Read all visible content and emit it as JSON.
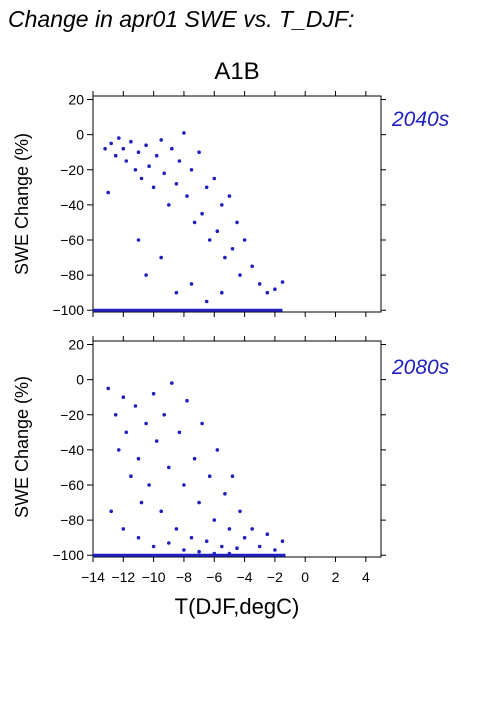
{
  "figure": {
    "title": "Change in apr01 SWE vs. T_DJF:",
    "scenario": "A1B",
    "xlabel": "T(DJF,degC)",
    "point_color": "#2020c0"
  },
  "chart_data": [
    {
      "type": "scatter",
      "panel_label": "2040s",
      "ylabel": "SWE Change (%)",
      "xlim": [
        -14,
        5
      ],
      "ylim": [
        -101,
        22
      ],
      "x_ticks": [
        -14,
        -12,
        -10,
        -8,
        -6,
        -4,
        -2,
        0,
        2,
        4
      ],
      "y_ticks": [
        20,
        0,
        -20,
        -40,
        -60,
        -80,
        -100
      ],
      "x_tick_labels": [],
      "y_tick_labels": [
        "20",
        "0",
        "−20",
        "−40",
        "−60",
        "−80",
        "−100"
      ],
      "series": [
        {
          "points_approx": [
            [
              -13.2,
              -8
            ],
            [
              -13.0,
              -33
            ],
            [
              -12.8,
              -5
            ],
            [
              -12.5,
              -12
            ],
            [
              -12.3,
              -2
            ],
            [
              -12.0,
              -8
            ],
            [
              -11.8,
              -15
            ],
            [
              -11.5,
              -4
            ],
            [
              -11.2,
              -20
            ],
            [
              -11.0,
              -10
            ],
            [
              -10.8,
              -25
            ],
            [
              -10.5,
              -6
            ],
            [
              -10.3,
              -18
            ],
            [
              -10.0,
              -30
            ],
            [
              -9.8,
              -12
            ],
            [
              -9.5,
              -3
            ],
            [
              -9.3,
              -22
            ],
            [
              -9.0,
              -40
            ],
            [
              -8.8,
              -8
            ],
            [
              -8.5,
              -28
            ],
            [
              -8.3,
              -15
            ],
            [
              -8.0,
              1
            ],
            [
              -7.8,
              -35
            ],
            [
              -7.5,
              -20
            ],
            [
              -7.3,
              -50
            ],
            [
              -7.0,
              -10
            ],
            [
              -6.8,
              -45
            ],
            [
              -6.5,
              -30
            ],
            [
              -6.3,
              -60
            ],
            [
              -6.0,
              -25
            ],
            [
              -5.8,
              -55
            ],
            [
              -5.5,
              -40
            ],
            [
              -5.3,
              -70
            ],
            [
              -5.0,
              -35
            ],
            [
              -4.8,
              -65
            ],
            [
              -4.5,
              -50
            ],
            [
              -4.3,
              -80
            ],
            [
              -4.0,
              -60
            ],
            [
              -3.5,
              -75
            ],
            [
              -3.0,
              -85
            ],
            [
              -2.5,
              -90
            ],
            [
              -2.0,
              -88
            ],
            [
              -1.5,
              -84
            ],
            [
              -11.0,
              -60
            ],
            [
              -10.5,
              -80
            ],
            [
              -9.5,
              -70
            ],
            [
              -8.5,
              -90
            ],
            [
              -7.5,
              -85
            ],
            [
              -6.5,
              -95
            ],
            [
              -5.5,
              -90
            ]
          ],
          "baseline_value": -100,
          "baseline_x_range": [
            -14,
            -1.5
          ]
        }
      ]
    },
    {
      "type": "scatter",
      "panel_label": "2080s",
      "ylabel": "SWE Change (%)",
      "xlim": [
        -14,
        5
      ],
      "ylim": [
        -101,
        22
      ],
      "x_ticks": [
        -14,
        -12,
        -10,
        -8,
        -6,
        -4,
        -2,
        0,
        2,
        4
      ],
      "y_ticks": [
        20,
        0,
        -20,
        -40,
        -60,
        -80,
        -100
      ],
      "x_tick_labels": [
        "−14",
        "−12",
        "−10",
        "−8",
        "−6",
        "−4",
        "−2",
        "0",
        "2",
        "4"
      ],
      "y_tick_labels": [
        "20",
        "0",
        "−20",
        "−40",
        "−60",
        "−80",
        "−100"
      ],
      "series": [
        {
          "points_approx": [
            [
              -13.0,
              -5
            ],
            [
              -12.5,
              -20
            ],
            [
              -12.3,
              -40
            ],
            [
              -12.0,
              -10
            ],
            [
              -11.8,
              -30
            ],
            [
              -11.5,
              -55
            ],
            [
              -11.2,
              -15
            ],
            [
              -11.0,
              -45
            ],
            [
              -10.8,
              -70
            ],
            [
              -10.5,
              -25
            ],
            [
              -10.3,
              -60
            ],
            [
              -10.0,
              -8
            ],
            [
              -9.8,
              -35
            ],
            [
              -9.5,
              -75
            ],
            [
              -9.3,
              -20
            ],
            [
              -9.0,
              -50
            ],
            [
              -8.8,
              -2
            ],
            [
              -8.5,
              -85
            ],
            [
              -8.3,
              -30
            ],
            [
              -8.0,
              -60
            ],
            [
              -7.8,
              -12
            ],
            [
              -7.5,
              -90
            ],
            [
              -7.3,
              -45
            ],
            [
              -7.0,
              -70
            ],
            [
              -6.8,
              -25
            ],
            [
              -6.5,
              -92
            ],
            [
              -6.3,
              -55
            ],
            [
              -6.0,
              -80
            ],
            [
              -5.8,
              -40
            ],
            [
              -5.5,
              -95
            ],
            [
              -5.3,
              -65
            ],
            [
              -5.0,
              -85
            ],
            [
              -4.8,
              -55
            ],
            [
              -4.5,
              -96
            ],
            [
              -4.3,
              -75
            ],
            [
              -4.0,
              -90
            ],
            [
              -3.5,
              -85
            ],
            [
              -3.0,
              -95
            ],
            [
              -2.5,
              -88
            ],
            [
              -2.0,
              -97
            ],
            [
              -1.5,
              -92
            ],
            [
              -12.8,
              -75
            ],
            [
              -12.0,
              -85
            ],
            [
              -11.0,
              -90
            ],
            [
              -10.0,
              -95
            ],
            [
              -9.0,
              -93
            ],
            [
              -8.0,
              -97
            ],
            [
              -7.0,
              -98
            ],
            [
              -6.0,
              -99
            ],
            [
              -5.0,
              -99
            ]
          ],
          "baseline_value": -100,
          "baseline_x_range": [
            -14,
            -1.3
          ]
        }
      ]
    }
  ]
}
